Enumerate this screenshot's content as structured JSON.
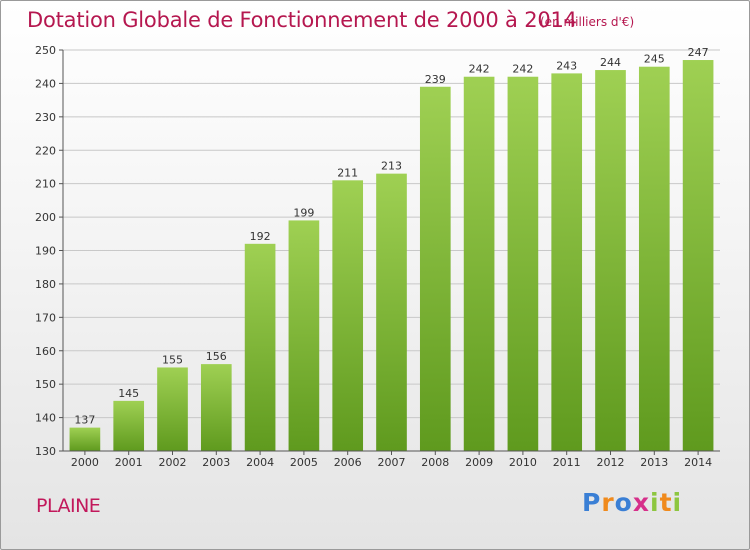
{
  "chart_data": {
    "type": "bar",
    "title": "Dotation Globale de Fonctionnement de 2000 à 2014",
    "subtitle": "(en milliers d'€)",
    "categories": [
      "2000",
      "2001",
      "2002",
      "2003",
      "2004",
      "2005",
      "2006",
      "2007",
      "2008",
      "2009",
      "2010",
      "2011",
      "2012",
      "2013",
      "2014"
    ],
    "values": [
      137,
      145,
      155,
      156,
      192,
      199,
      211,
      213,
      239,
      242,
      242,
      243,
      244,
      245,
      247
    ],
    "ylim": [
      130,
      250
    ],
    "yticks": [
      130,
      140,
      150,
      160,
      170,
      180,
      190,
      200,
      210,
      220,
      230,
      240,
      250
    ],
    "xlabel": "",
    "ylabel": "",
    "grid": true,
    "bar_color": "#7ab33a"
  },
  "commune": "PLAINE",
  "logo": {
    "letters": [
      "P",
      "r",
      "o",
      "x",
      "i",
      "t",
      "i"
    ],
    "colors": [
      "#3a7fd5",
      "#f08a1c",
      "#3a7fd5",
      "#d62f8a",
      "#8dc63f",
      "#f08a1c",
      "#8dc63f"
    ]
  }
}
